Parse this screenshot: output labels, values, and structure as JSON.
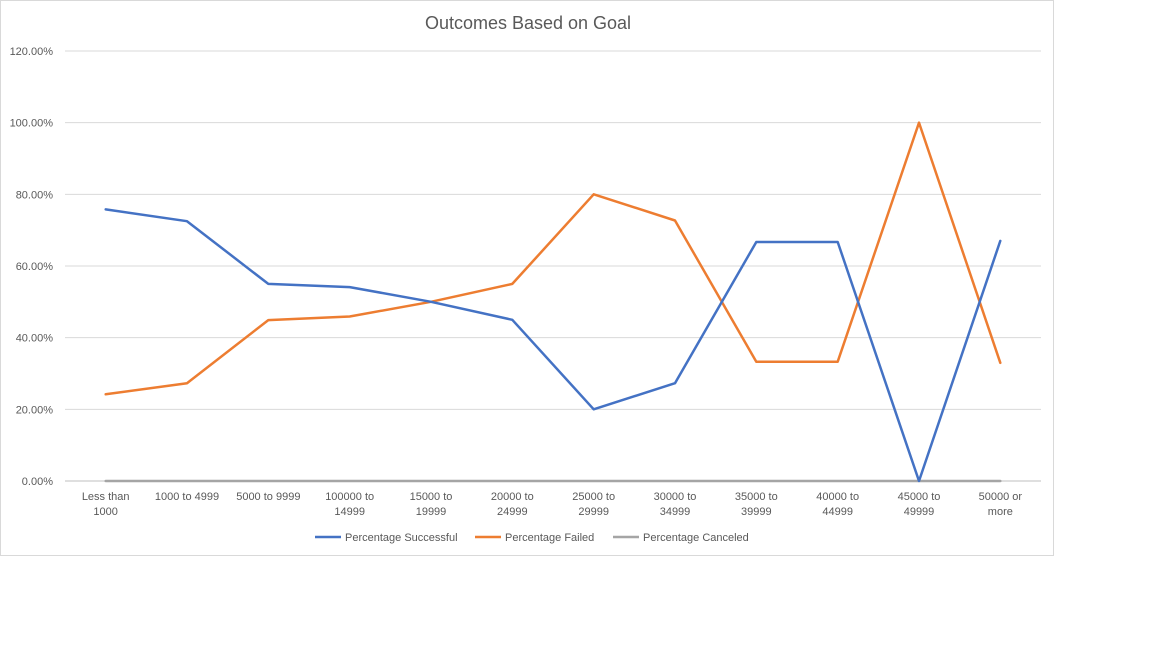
{
  "chart_data": {
    "type": "line",
    "title": "Outcomes Based on Goal",
    "xlabel": "",
    "ylabel": "",
    "categories": [
      "Less than 1000",
      "1000 to 4999",
      "5000 to 9999",
      "100000 to 14999",
      "15000 to 19999",
      "20000 to 24999",
      "25000 to 29999",
      "30000 to 34999",
      "35000 to 39999",
      "40000 to 44999",
      "45000 to 49999",
      "50000 or more"
    ],
    "ylim": [
      0,
      120
    ],
    "yticks": [
      "0.00%",
      "20.00%",
      "40.00%",
      "60.00%",
      "80.00%",
      "100.00%",
      "120.00%"
    ],
    "ytick_values": [
      0,
      20,
      40,
      60,
      80,
      100,
      120
    ],
    "grid": true,
    "legend_position": "bottom",
    "series": [
      {
        "name": "Percentage Successful",
        "color": "#4472c4",
        "values": [
          75.8,
          72.5,
          55.0,
          54.1,
          50.0,
          45.0,
          20.0,
          27.3,
          66.7,
          66.7,
          0.0,
          67.0
        ]
      },
      {
        "name": "Percentage Failed",
        "color": "#ed7d31",
        "values": [
          24.2,
          27.3,
          44.9,
          45.9,
          50.0,
          55.0,
          80.0,
          72.7,
          33.3,
          33.3,
          100.0,
          33.0
        ]
      },
      {
        "name": "Percentage Canceled",
        "color": "#a5a5a5",
        "values": [
          0,
          0,
          0,
          0,
          0,
          0,
          0,
          0,
          0,
          0,
          0,
          0
        ]
      }
    ]
  }
}
